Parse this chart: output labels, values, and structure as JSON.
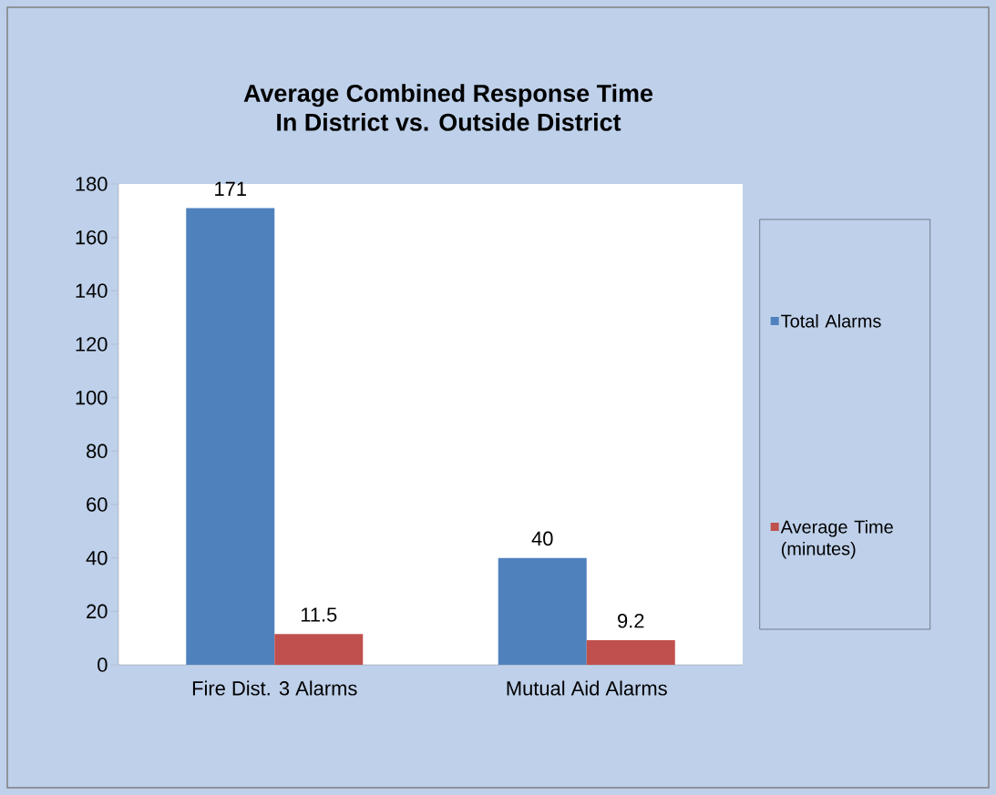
{
  "chart_data": {
    "type": "bar",
    "title": "Average Combined Response Time",
    "subtitle": "In District vs. Outside District",
    "categories": [
      "Fire Dist. 3 Alarms",
      "Mutual Aid Alarms"
    ],
    "series": [
      {
        "name": "Total Alarms",
        "color": "#4f81bd",
        "values": [
          171,
          40
        ]
      },
      {
        "name": "Average Time (minutes)",
        "color": "#c0504d",
        "values": [
          11.5,
          9.2
        ]
      }
    ],
    "ylim": [
      0,
      180
    ],
    "yticks": [
      0,
      20,
      40,
      60,
      80,
      100,
      120,
      140,
      160,
      180
    ],
    "data_labels": true,
    "legend": "right",
    "grid": false
  }
}
